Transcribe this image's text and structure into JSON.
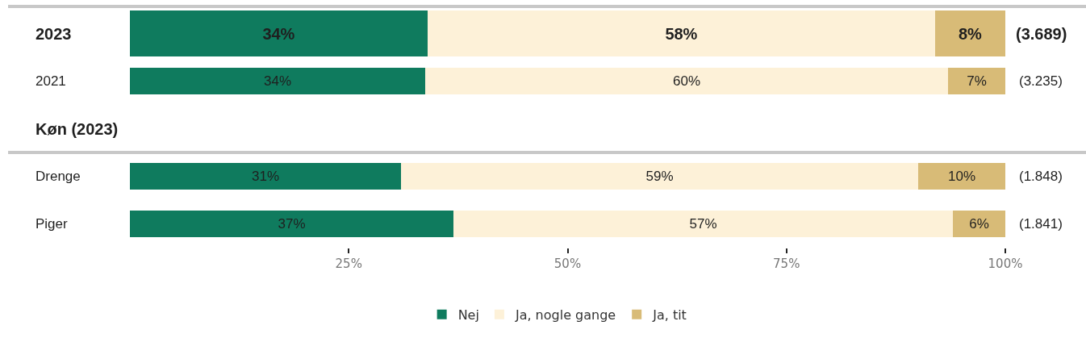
{
  "chart_data": {
    "type": "bar",
    "orientation": "horizontal",
    "stacked": true,
    "categories": [
      "2023",
      "2021",
      "Køn (2023)",
      "Drenge",
      "Piger"
    ],
    "series": [
      {
        "name": "Nej",
        "color": "#0f7b5e",
        "values": [
          34,
          33.7,
          null,
          31,
          37
        ],
        "value_labels": [
          "34%",
          "34%",
          null,
          "31%",
          "37%"
        ]
      },
      {
        "name": "Ja, nogle gange",
        "color": "#fdf1d8",
        "values": [
          58,
          59.8,
          null,
          59,
          57
        ],
        "value_labels": [
          "58%",
          "60%",
          null,
          "59%",
          "57%"
        ]
      },
      {
        "name": "Ja, tit",
        "color": "#d8bb77",
        "values": [
          8,
          6.5,
          null,
          10,
          6
        ],
        "value_labels": [
          "8%",
          "7%",
          null,
          "10%",
          "6%"
        ]
      }
    ],
    "xlim": [
      0,
      100
    ],
    "xticks": [
      {
        "value": 25,
        "label": "25%"
      },
      {
        "value": 50,
        "label": "50%"
      },
      {
        "value": 75,
        "label": "75%"
      },
      {
        "value": 100,
        "label": "100%"
      }
    ],
    "annotations": [
      "(3.689)",
      "(3.235)",
      "(1.848)",
      "(1.841)"
    ],
    "legend": "bottom"
  }
}
